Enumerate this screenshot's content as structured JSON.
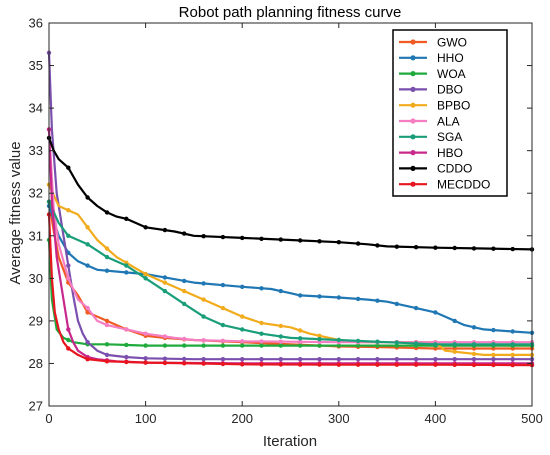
{
  "chart_data": {
    "type": "line",
    "title": "Robot path planning fitness curve",
    "xlabel": "Iteration",
    "ylabel": "Average fitness value",
    "xlim": [
      0,
      500
    ],
    "ylim": [
      27,
      36
    ],
    "xticks": [
      0,
      100,
      200,
      300,
      400,
      500
    ],
    "yticks": [
      27,
      28,
      29,
      30,
      31,
      32,
      33,
      34,
      35,
      36
    ],
    "grid": false,
    "legend_position": "top-right",
    "series": [
      {
        "name": "GWO",
        "color": "#f05a23",
        "points": [
          [
            0,
            31.8
          ],
          [
            5,
            31.1
          ],
          [
            10,
            30.5
          ],
          [
            15,
            30.2
          ],
          [
            20,
            29.9
          ],
          [
            30,
            29.6
          ],
          [
            40,
            29.2
          ],
          [
            50,
            29.1
          ],
          [
            60,
            29.0
          ],
          [
            80,
            28.8
          ],
          [
            100,
            28.65
          ],
          [
            120,
            28.6
          ],
          [
            150,
            28.55
          ],
          [
            200,
            28.5
          ],
          [
            250,
            28.45
          ],
          [
            300,
            28.4
          ],
          [
            350,
            28.38
          ],
          [
            400,
            28.35
          ],
          [
            450,
            28.35
          ],
          [
            500,
            28.35
          ]
        ]
      },
      {
        "name": "HHO",
        "color": "#1f77b4",
        "points": [
          [
            0,
            31.7
          ],
          [
            10,
            31.0
          ],
          [
            20,
            30.6
          ],
          [
            30,
            30.4
          ],
          [
            40,
            30.3
          ],
          [
            50,
            30.2
          ],
          [
            75,
            30.15
          ],
          [
            100,
            30.1
          ],
          [
            150,
            29.9
          ],
          [
            200,
            29.8
          ],
          [
            230,
            29.75
          ],
          [
            250,
            29.65
          ],
          [
            260,
            29.6
          ],
          [
            300,
            29.55
          ],
          [
            330,
            29.5
          ],
          [
            350,
            29.45
          ],
          [
            380,
            29.3
          ],
          [
            400,
            29.2
          ],
          [
            410,
            29.1
          ],
          [
            430,
            28.9
          ],
          [
            450,
            28.8
          ],
          [
            480,
            28.75
          ],
          [
            500,
            28.72
          ]
        ]
      },
      {
        "name": "WOA",
        "color": "#1faa3c",
        "points": [
          [
            0,
            30.9
          ],
          [
            3,
            29.5
          ],
          [
            8,
            28.8
          ],
          [
            15,
            28.6
          ],
          [
            25,
            28.5
          ],
          [
            40,
            28.45
          ],
          [
            60,
            28.45
          ],
          [
            100,
            28.42
          ],
          [
            200,
            28.42
          ],
          [
            300,
            28.42
          ],
          [
            400,
            28.42
          ],
          [
            500,
            28.42
          ]
        ]
      },
      {
        "name": "DBO",
        "color": "#7a4fae",
        "points": [
          [
            0,
            35.3
          ],
          [
            3,
            33.5
          ],
          [
            8,
            32.0
          ],
          [
            15,
            31.0
          ],
          [
            20,
            30.3
          ],
          [
            25,
            29.6
          ],
          [
            30,
            29.0
          ],
          [
            35,
            28.7
          ],
          [
            40,
            28.5
          ],
          [
            50,
            28.3
          ],
          [
            60,
            28.2
          ],
          [
            80,
            28.15
          ],
          [
            100,
            28.12
          ],
          [
            150,
            28.1
          ],
          [
            200,
            28.1
          ],
          [
            300,
            28.1
          ],
          [
            400,
            28.1
          ],
          [
            500,
            28.1
          ]
        ]
      },
      {
        "name": "BPBO",
        "color": "#f2ab1c",
        "points": [
          [
            0,
            32.2
          ],
          [
            10,
            31.7
          ],
          [
            20,
            31.6
          ],
          [
            30,
            31.5
          ],
          [
            40,
            31.2
          ],
          [
            50,
            30.9
          ],
          [
            70,
            30.5
          ],
          [
            100,
            30.1
          ],
          [
            120,
            29.9
          ],
          [
            150,
            29.6
          ],
          [
            180,
            29.3
          ],
          [
            200,
            29.1
          ],
          [
            220,
            28.95
          ],
          [
            250,
            28.85
          ],
          [
            270,
            28.7
          ],
          [
            300,
            28.55
          ],
          [
            320,
            28.5
          ],
          [
            400,
            28.5
          ],
          [
            410,
            28.3
          ],
          [
            450,
            28.2
          ],
          [
            500,
            28.2
          ]
        ]
      },
      {
        "name": "ALA",
        "color": "#f57ec2",
        "points": [
          [
            0,
            33.5
          ],
          [
            5,
            31.6
          ],
          [
            10,
            30.8
          ],
          [
            20,
            30.0
          ],
          [
            30,
            29.5
          ],
          [
            40,
            29.3
          ],
          [
            50,
            29.0
          ],
          [
            60,
            28.9
          ],
          [
            80,
            28.8
          ],
          [
            100,
            28.7
          ],
          [
            130,
            28.6
          ],
          [
            150,
            28.55
          ],
          [
            200,
            28.52
          ],
          [
            300,
            28.5
          ],
          [
            400,
            28.5
          ],
          [
            500,
            28.5
          ]
        ]
      },
      {
        "name": "SGA",
        "color": "#1a9e7a",
        "points": [
          [
            0,
            31.8
          ],
          [
            10,
            31.3
          ],
          [
            20,
            31.0
          ],
          [
            40,
            30.8
          ],
          [
            60,
            30.5
          ],
          [
            80,
            30.3
          ],
          [
            100,
            30.0
          ],
          [
            120,
            29.7
          ],
          [
            140,
            29.4
          ],
          [
            160,
            29.1
          ],
          [
            180,
            28.9
          ],
          [
            200,
            28.8
          ],
          [
            220,
            28.7
          ],
          [
            250,
            28.6
          ],
          [
            300,
            28.55
          ],
          [
            350,
            28.5
          ],
          [
            400,
            28.45
          ],
          [
            450,
            28.45
          ],
          [
            500,
            28.45
          ]
        ]
      },
      {
        "name": "HBO",
        "color": "#c8288c",
        "points": [
          [
            0,
            33.5
          ],
          [
            3,
            31.8
          ],
          [
            8,
            30.5
          ],
          [
            15,
            29.5
          ],
          [
            20,
            28.8
          ],
          [
            25,
            28.5
          ],
          [
            30,
            28.3
          ],
          [
            40,
            28.15
          ],
          [
            50,
            28.1
          ],
          [
            70,
            28.05
          ],
          [
            100,
            28.02
          ],
          [
            200,
            28.0
          ],
          [
            300,
            28.0
          ],
          [
            400,
            28.0
          ],
          [
            500,
            28.0
          ]
        ]
      },
      {
        "name": "CDDO",
        "color": "#000000",
        "points": [
          [
            0,
            33.3
          ],
          [
            5,
            33.0
          ],
          [
            10,
            32.8
          ],
          [
            20,
            32.6
          ],
          [
            30,
            32.2
          ],
          [
            40,
            31.9
          ],
          [
            50,
            31.7
          ],
          [
            60,
            31.55
          ],
          [
            70,
            31.45
          ],
          [
            80,
            31.4
          ],
          [
            100,
            31.2
          ],
          [
            130,
            31.1
          ],
          [
            150,
            31.0
          ],
          [
            200,
            30.95
          ],
          [
            250,
            30.9
          ],
          [
            300,
            30.85
          ],
          [
            330,
            30.8
          ],
          [
            350,
            30.75
          ],
          [
            400,
            30.72
          ],
          [
            450,
            30.7
          ],
          [
            500,
            30.68
          ]
        ]
      },
      {
        "name": "MECDDO",
        "color": "#e8141e",
        "points": [
          [
            0,
            31.5
          ],
          [
            3,
            30.0
          ],
          [
            6,
            29.2
          ],
          [
            10,
            28.8
          ],
          [
            15,
            28.5
          ],
          [
            20,
            28.35
          ],
          [
            30,
            28.2
          ],
          [
            40,
            28.1
          ],
          [
            60,
            28.05
          ],
          [
            100,
            28.02
          ],
          [
            150,
            28.0
          ],
          [
            200,
            27.98
          ],
          [
            300,
            27.97
          ],
          [
            400,
            27.97
          ],
          [
            500,
            27.96
          ]
        ]
      }
    ]
  }
}
